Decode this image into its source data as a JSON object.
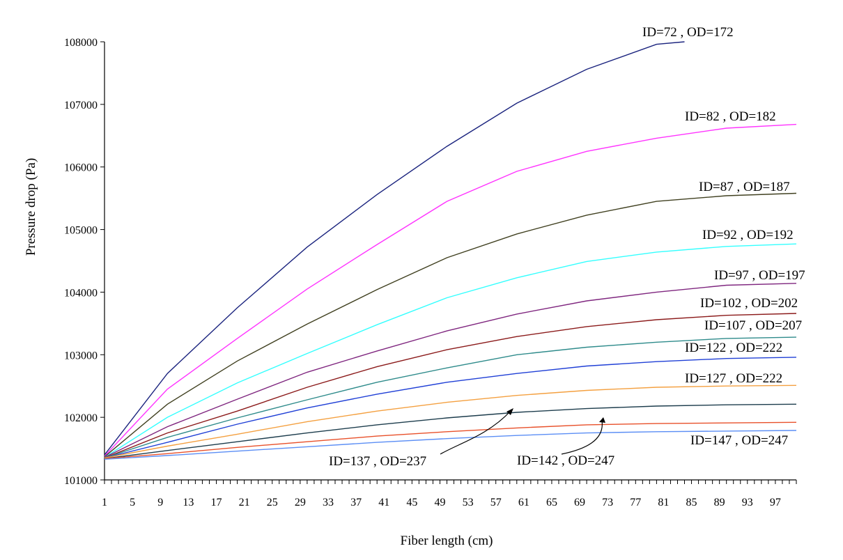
{
  "chart_data": {
    "type": "line",
    "title": "",
    "xlabel": "Fiber length (cm)",
    "ylabel": "Pressure drop (Pa)",
    "xlim": [
      1,
      100
    ],
    "ylim": [
      101000,
      108000
    ],
    "x_tick_labels": [
      "1",
      "5",
      "9",
      "13",
      "17",
      "21",
      "25",
      "29",
      "33",
      "37",
      "41",
      "45",
      "49",
      "53",
      "57",
      "61",
      "65",
      "69",
      "73",
      "77",
      "81",
      "85",
      "89",
      "93",
      "97"
    ],
    "y_tick_labels": [
      "101000",
      "102000",
      "103000",
      "104000",
      "105000",
      "106000",
      "107000",
      "108000"
    ],
    "grid": false,
    "legend": "none",
    "series": [
      {
        "name": "ID=72 , OD=172",
        "color": "#1a237e",
        "x": [
          1,
          10,
          20,
          30,
          40,
          50,
          60,
          70,
          80,
          84
        ],
        "y": [
          101400,
          102700,
          103750,
          104720,
          105560,
          106330,
          107020,
          107560,
          107960,
          108000
        ]
      },
      {
        "name": "ID=82 , OD=182",
        "color": "#ff33ff",
        "x": [
          1,
          10,
          20,
          30,
          40,
          50,
          60,
          70,
          80,
          90,
          100
        ],
        "y": [
          101380,
          102450,
          103260,
          104050,
          104760,
          105450,
          105930,
          106250,
          106460,
          106620,
          106680
        ]
      },
      {
        "name": "ID=87 , OD=187",
        "color": "#404020",
        "x": [
          1,
          10,
          20,
          30,
          40,
          50,
          60,
          70,
          80,
          90,
          100
        ],
        "y": [
          101370,
          102210,
          102900,
          103490,
          104040,
          104550,
          104930,
          105230,
          105450,
          105540,
          105580
        ]
      },
      {
        "name": "ID=92 , OD=192",
        "color": "#33ffff",
        "x": [
          1,
          10,
          20,
          30,
          40,
          50,
          60,
          70,
          80,
          90,
          100
        ],
        "y": [
          101360,
          102000,
          102550,
          103020,
          103480,
          103910,
          104230,
          104490,
          104640,
          104730,
          104770
        ]
      },
      {
        "name": "ID=97 , OD=197",
        "color": "#7f267f",
        "x": [
          1,
          10,
          20,
          30,
          40,
          50,
          60,
          70,
          80,
          90,
          100
        ],
        "y": [
          101360,
          101850,
          102290,
          102720,
          103060,
          103380,
          103650,
          103860,
          104000,
          104110,
          104140
        ]
      },
      {
        "name": "ID=102 , OD=202",
        "color": "#8b1a1a",
        "x": [
          1,
          10,
          20,
          30,
          40,
          50,
          60,
          70,
          80,
          90,
          100
        ],
        "y": [
          101350,
          101750,
          102100,
          102480,
          102810,
          103080,
          103290,
          103450,
          103560,
          103630,
          103660
        ]
      },
      {
        "name": "ID=107 , OD=207",
        "color": "#2e8b8b",
        "x": [
          1,
          10,
          20,
          30,
          40,
          50,
          60,
          70,
          80,
          90,
          100
        ],
        "y": [
          101350,
          101680,
          101990,
          102280,
          102560,
          102790,
          103000,
          103120,
          103200,
          103260,
          103280
        ]
      },
      {
        "name": "ID=122 , OD=222",
        "color": "#1f3fd6",
        "x": [
          1,
          10,
          20,
          30,
          40,
          50,
          60,
          70,
          80,
          90,
          100
        ],
        "y": [
          101350,
          101600,
          101890,
          102150,
          102370,
          102560,
          102700,
          102820,
          102890,
          102940,
          102960
        ]
      },
      {
        "name": "ID=127 , OD=222",
        "color": "#f4a040",
        "x": [
          1,
          10,
          20,
          30,
          40,
          50,
          60,
          70,
          80,
          90,
          100
        ],
        "y": [
          101350,
          101540,
          101730,
          101930,
          102100,
          102240,
          102350,
          102430,
          102480,
          102500,
          102510
        ]
      },
      {
        "name": "ID=137 , OD=237",
        "color": "#1c3c4c",
        "x": [
          1,
          10,
          20,
          30,
          40,
          50,
          60,
          70,
          80,
          90,
          100
        ],
        "y": [
          101340,
          101470,
          101610,
          101750,
          101880,
          101990,
          102080,
          102140,
          102180,
          102200,
          102210
        ]
      },
      {
        "name": "ID=142 , OD=247",
        "color": "#e8502a",
        "x": [
          1,
          10,
          20,
          30,
          40,
          50,
          60,
          70,
          80,
          90,
          100
        ],
        "y": [
          101340,
          101420,
          101520,
          101610,
          101700,
          101770,
          101830,
          101880,
          101900,
          101910,
          101920
        ]
      },
      {
        "name": "ID=147 , OD=247",
        "color": "#5b8ef5",
        "x": [
          1,
          10,
          20,
          30,
          40,
          50,
          60,
          70,
          80,
          90,
          100
        ],
        "y": [
          101330,
          101390,
          101460,
          101530,
          101600,
          101660,
          101710,
          101750,
          101770,
          101780,
          101790
        ]
      }
    ]
  }
}
